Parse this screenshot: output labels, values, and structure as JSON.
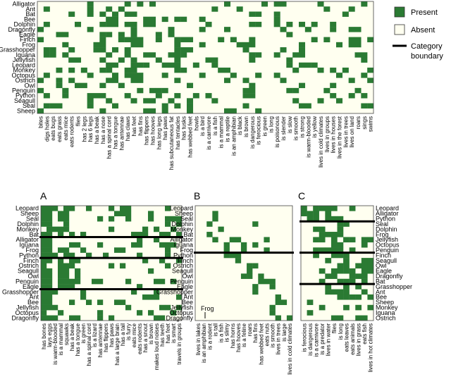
{
  "chart_data": [
    {
      "type": "heatmap",
      "rows": [
        "Alligator",
        "Ant",
        "Bat",
        "Bee",
        "Dolphin",
        "Dragonfly",
        "Eagle",
        "Finch",
        "Frog",
        "Grasshopper",
        "Iguana",
        "Jellyfish",
        "Leopard",
        "Monkey",
        "Octopus",
        "Ostrich",
        "Owl",
        "Penguin",
        "Python",
        "Seagull",
        "Seal",
        "Sheep"
      ],
      "columns": [
        "bites",
        "digs holes",
        "eats bugs",
        "eats grass",
        "eats mice",
        "eats rodents",
        "flies",
        "has 2 legs",
        "has 6 legs",
        "has a beak",
        "has a nose",
        "has a spinal cord",
        "has a tongue",
        "has antennae",
        "has claws",
        "has feet",
        "has fins",
        "has flippers",
        "has hooves",
        "has long legs",
        "has paws",
        "has subcutaneous fat",
        "has tentacles",
        "has tusks",
        "has webbed feet",
        "howls",
        "is a bird",
        "is a carnivore",
        "is a fish",
        "is a mammal",
        "is a reptile",
        "is an amphibian",
        "is black",
        "is brown",
        "is dangerous",
        "is ferocious",
        "is green",
        "is long",
        "is poisonous",
        "is slender",
        "is slow",
        "is smooth",
        "is strong",
        "is warm-blooded",
        "is yellow",
        "lives in cold climates",
        "lives in groups",
        "lives in houses",
        "lives in the forest",
        "lives in trees",
        "lives on land",
        "roars",
        "sings",
        "swims"
      ]
    },
    {
      "type": "heatmap",
      "panel": "A",
      "rows": [
        "Leopard",
        "Sheep",
        "Seal",
        "Dolphin",
        "Monkey",
        "Bat",
        "Alligator",
        "Iguana",
        "Frog",
        "Python",
        "Finch",
        "Ostrich",
        "Seagull",
        "Owl",
        "Penguin",
        "Eagle",
        "Grasshopper",
        "Ant",
        "Bee",
        "Jellyfish",
        "Octopus",
        "Dragonfly"
      ],
      "columns": [
        "has bones",
        "lays eggs",
        "is warm-blooded",
        "is a mammal",
        "squawks",
        "has a beak",
        "has a tongue",
        "is green",
        "has a spinal cord",
        "is a lizard",
        "has antennae",
        "has flippers",
        "has paws",
        "has a large brain",
        "has a tail",
        "is furry",
        "eats mice",
        "eats rodents",
        "has a snout",
        "is brown",
        "makes loud noises",
        "has teeth",
        "has feet",
        "is smart",
        "travels in groups"
      ],
      "category_boundaries_after_row": [
        "Bat",
        "Python",
        "Eagle"
      ]
    },
    {
      "type": "heatmap",
      "panel": "B",
      "rows": [
        "Leopard",
        "Sheep",
        "Seal",
        "Dolphin",
        "Monkey",
        "Bat",
        "Alligator",
        "Iguana",
        "Frog",
        "Python",
        "Finch",
        "Ostrich",
        "Seagull",
        "Owl",
        "Penguin",
        "Eagle",
        "Grasshopper",
        "Ant",
        "Bee",
        "Jellyfish",
        "Octopus",
        "Dragonfly"
      ],
      "columns": [
        "lives in lakes",
        "is an amphibian",
        "is a rodent",
        "is tall",
        "is a fish",
        "is slimy",
        "has horns",
        "has hooves",
        "is a feline",
        "roars",
        "has fins",
        "has webbed feet",
        "eats nuts",
        "is smooth",
        "lives in trees",
        "is large",
        "lives in cold climates"
      ],
      "annotation": "Frog",
      "category_boundaries_after_row": [
        "Frog"
      ]
    },
    {
      "type": "heatmap",
      "panel": "C",
      "rows": [
        "Leopard",
        "Alligator",
        "Python",
        "Seal",
        "Dolphin",
        "Frog",
        "Jellyfish",
        "Octopus",
        "Penguin",
        "Finch",
        "Seagull",
        "Owl",
        "Eagle",
        "Dragonfly",
        "Bat",
        "Grasshopper",
        "Ant",
        "Bee",
        "Sheep",
        "Monkey",
        "Iguana",
        "Ostrich"
      ],
      "columns": [
        "is ferocious",
        "is dangerous",
        "is a carnivore",
        "is a predator",
        "lives in water",
        "flies",
        "is long",
        "eats leaves",
        "eats animals",
        "lives in grass",
        "eats fish",
        "lives in hot climates"
      ],
      "category_boundaries_after_row": [
        "Python",
        "Penguin",
        "Bat"
      ]
    }
  ],
  "legend": {
    "present_label": "Present",
    "absent_label": "Absent",
    "boundary_label_1": "Category",
    "boundary_label_2": "boundary"
  },
  "panel_labels": {
    "a": "A",
    "b": "B",
    "c": "C"
  },
  "colors": {
    "present": "#2a7a33",
    "absent": "#fffff0",
    "border": "#444444",
    "boundary": "#000000"
  }
}
